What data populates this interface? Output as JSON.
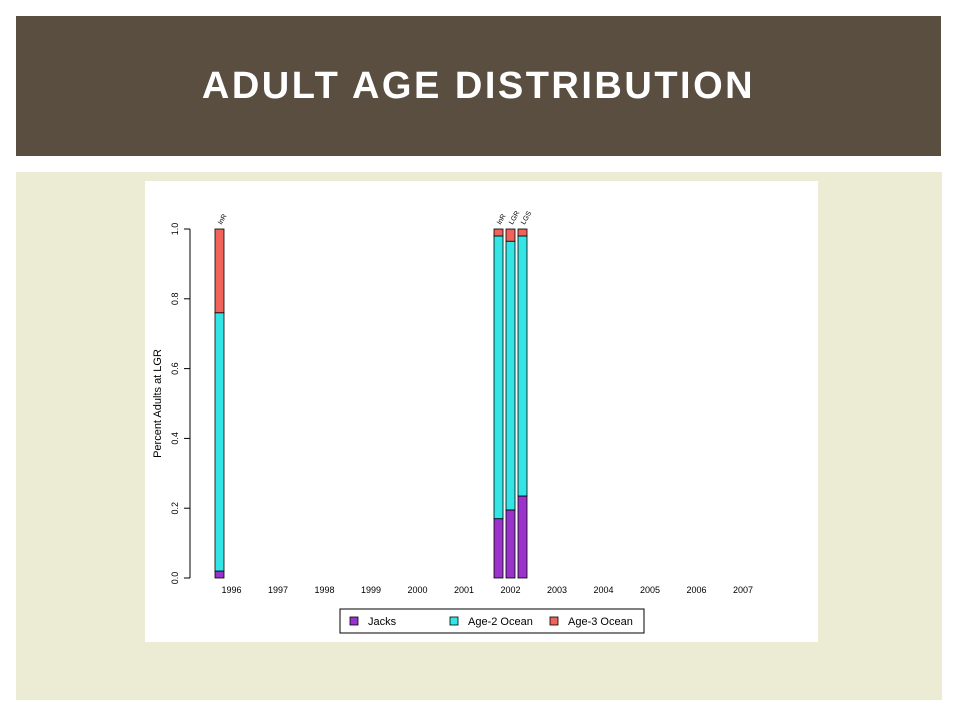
{
  "slide": {
    "title": "ADULT AGE DISTRIBUTION",
    "header_color": "#5a4e40",
    "content_bg": "#ecebd4"
  },
  "chart_data": {
    "type": "bar",
    "stacked": true,
    "ylabel": "Percent Adults at LGR",
    "xlabel": "",
    "ylim": [
      0,
      1
    ],
    "yticks": [
      "0.0",
      "0.2",
      "0.4",
      "0.6",
      "0.8",
      "1.0"
    ],
    "years": [
      "1996",
      "1997",
      "1998",
      "1999",
      "2000",
      "2001",
      "2002",
      "2003",
      "2004",
      "2005",
      "2006",
      "2007"
    ],
    "legend_position": "bottom",
    "series": [
      {
        "name": "Jacks",
        "color": "#9933cc"
      },
      {
        "name": "Age-2 Ocean",
        "color": "#33e5e5"
      },
      {
        "name": "Age-3 Ocean",
        "color": "#f0625a"
      }
    ],
    "bars": [
      {
        "year": "1996",
        "label": "InR",
        "values": [
          0.02,
          0.74,
          0.24
        ]
      },
      {
        "year": "2002",
        "label": "InR",
        "values": [
          0.17,
          0.81,
          0.02
        ]
      },
      {
        "year": "2002",
        "label": "LGR",
        "values": [
          0.195,
          0.77,
          0.035
        ]
      },
      {
        "year": "2002",
        "label": "LGS",
        "values": [
          0.235,
          0.745,
          0.02
        ]
      }
    ]
  }
}
